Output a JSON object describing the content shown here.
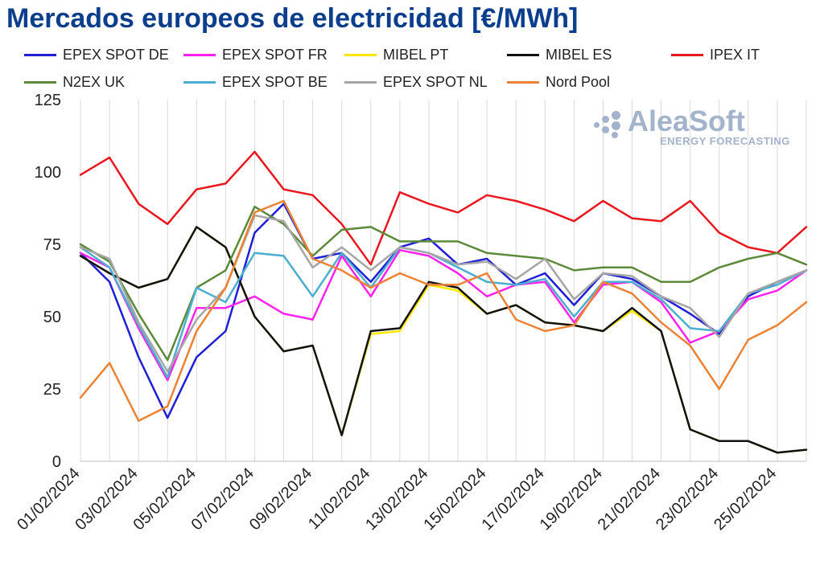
{
  "header": {
    "title": "Mercados europeos de electricidad [€/MWh]"
  },
  "logo": {
    "name": "AleaSoft",
    "tagline": "ENERGY FORECASTING",
    "color": "#a3b3cc"
  },
  "chart_data": {
    "type": "line",
    "title": "Mercados europeos de electricidad [€/MWh]",
    "xlabel": "",
    "ylabel": "",
    "ylim": [
      0,
      125
    ],
    "yticks": [
      0,
      25,
      50,
      75,
      100,
      125
    ],
    "grid": "vertical",
    "legend_position": "top",
    "categories": [
      "01/02/2024",
      "02/02/2024",
      "03/02/2024",
      "04/02/2024",
      "05/02/2024",
      "06/02/2024",
      "07/02/2024",
      "08/02/2024",
      "09/02/2024",
      "10/02/2024",
      "11/02/2024",
      "12/02/2024",
      "13/02/2024",
      "14/02/2024",
      "15/02/2024",
      "16/02/2024",
      "17/02/2024",
      "18/02/2024",
      "19/02/2024",
      "20/02/2024",
      "21/02/2024",
      "22/02/2024",
      "23/02/2024",
      "24/02/2024",
      "25/02/2024",
      "26/02/2024"
    ],
    "xtick_labels": [
      "01/02/2024",
      "03/02/2024",
      "05/02/2024",
      "07/02/2024",
      "09/02/2024",
      "11/02/2024",
      "13/02/2024",
      "15/02/2024",
      "17/02/2024",
      "19/02/2024",
      "21/02/2024",
      "23/02/2024",
      "25/02/2024"
    ],
    "series": [
      {
        "name": "EPEX SPOT DE",
        "color": "#1f1fd6",
        "values": [
          72,
          62,
          36,
          15,
          36,
          45,
          79,
          89,
          70,
          72,
          62,
          74,
          77,
          68,
          70,
          61,
          65,
          54,
          65,
          63,
          57,
          51,
          44,
          57,
          62,
          66
        ]
      },
      {
        "name": "EPEX SPOT FR",
        "color": "#ff22ee",
        "values": [
          72,
          67,
          46,
          28,
          53,
          53,
          57,
          51,
          49,
          71,
          57,
          73,
          71,
          65,
          57,
          61,
          62,
          48,
          61,
          62,
          55,
          41,
          45,
          56,
          59,
          66
        ]
      },
      {
        "name": "MIBEL PT",
        "color": "#ffe600",
        "values": [
          71,
          65,
          60,
          63,
          81,
          74,
          50,
          38,
          40,
          9,
          44,
          45,
          61,
          59,
          51,
          54,
          48,
          47,
          45,
          52,
          45,
          11,
          7,
          7,
          3,
          4
        ]
      },
      {
        "name": "MIBEL ES",
        "color": "#111111",
        "values": [
          71,
          65,
          60,
          63,
          81,
          74,
          50,
          38,
          40,
          9,
          45,
          46,
          62,
          60,
          51,
          54,
          48,
          47,
          45,
          53,
          45,
          11,
          7,
          7,
          3,
          4
        ]
      },
      {
        "name": "IPEX IT",
        "color": "#e8181e",
        "values": [
          99,
          105,
          89,
          82,
          94,
          96,
          107,
          94,
          92,
          82,
          68,
          93,
          89,
          86,
          92,
          90,
          87,
          83,
          90,
          84,
          83,
          90,
          79,
          74,
          72,
          81
        ]
      },
      {
        "name": "N2EX UK",
        "color": "#5b8a3a",
        "values": [
          75,
          69,
          51,
          35,
          60,
          66,
          88,
          82,
          71,
          80,
          81,
          76,
          76,
          76,
          72,
          71,
          70,
          66,
          67,
          67,
          62,
          62,
          67,
          70,
          72,
          68
        ]
      },
      {
        "name": "EPEX SPOT BE",
        "color": "#4aaed0",
        "values": [
          74,
          67,
          47,
          29,
          60,
          55,
          72,
          71,
          57,
          72,
          60,
          74,
          72,
          67,
          62,
          61,
          63,
          50,
          62,
          62,
          56,
          46,
          45,
          58,
          61,
          66
        ]
      },
      {
        "name": "EPEX SPOT NL",
        "color": "#a6a6a6",
        "values": [
          74,
          70,
          48,
          31,
          49,
          60,
          85,
          83,
          67,
          74,
          66,
          74,
          72,
          68,
          69,
          63,
          70,
          56,
          65,
          64,
          57,
          53,
          43,
          58,
          62,
          66
        ]
      },
      {
        "name": "Nord Pool",
        "color": "#ee8233",
        "values": [
          22,
          34,
          14,
          19,
          45,
          60,
          86,
          90,
          70,
          66,
          60,
          65,
          61,
          61,
          65,
          49,
          45,
          47,
          62,
          58,
          48,
          40,
          25,
          42,
          47,
          55
        ]
      }
    ]
  }
}
